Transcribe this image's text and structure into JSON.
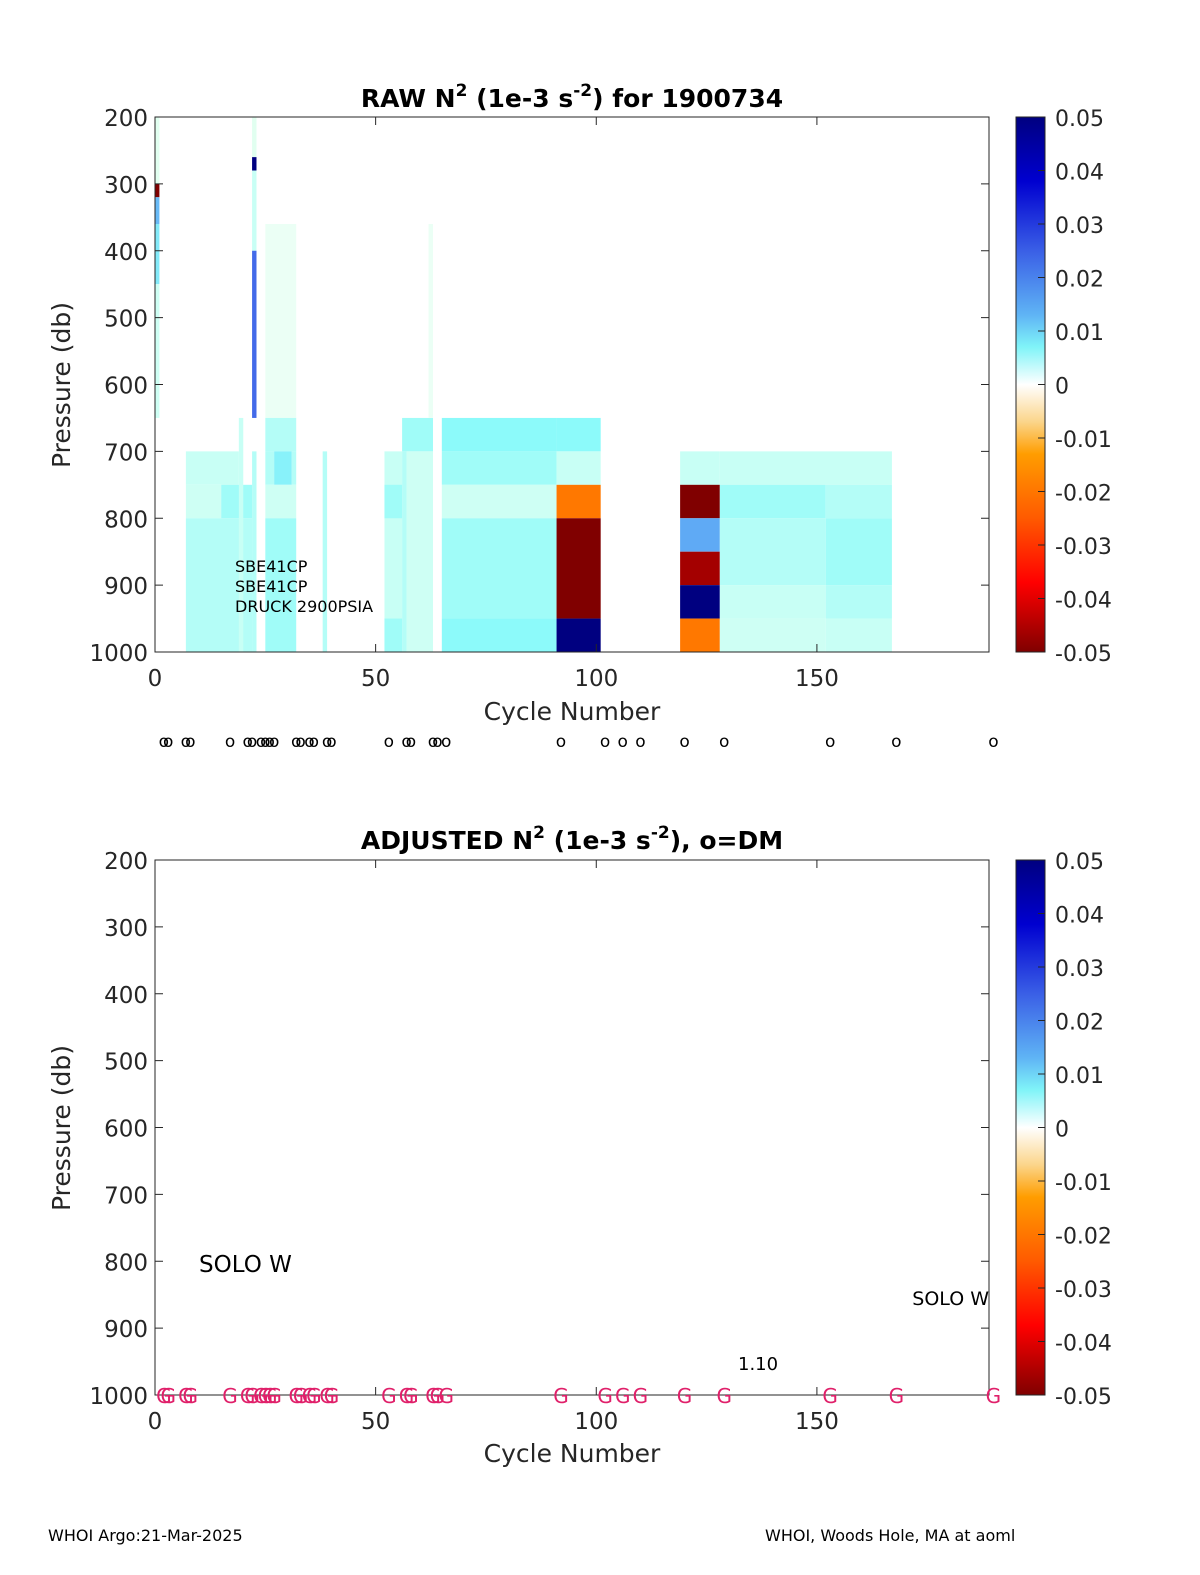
{
  "footer": {
    "left": "WHOI Argo:21-Mar-2025",
    "right": "WHOI, Woods Hole, MA at aoml"
  },
  "colorbar": {
    "colormap": "jet-like with white center (dark red → red → orange → white → cyan → blue → navy)",
    "range": [
      -0.05,
      0.05
    ],
    "tick_labels": [
      "0.05",
      "0.04",
      "0.03",
      "0.02",
      "0.01",
      "0",
      "-0.01",
      "-0.02",
      "-0.03",
      "-0.04",
      "-0.05"
    ]
  },
  "chart_data": [
    {
      "type": "heatmap",
      "title_main": "RAW N",
      "title_sup1": "2",
      "title_mid": " (1e-3 s",
      "title_sup2": "-2",
      "title_end": ") for 1900734",
      "xlabel": "Cycle Number",
      "ylabel": "Pressure (db)",
      "xlim": [
        0,
        189
      ],
      "ylim": [
        1000,
        200
      ],
      "y_reversed": true,
      "xticks": [
        0,
        50,
        100,
        150
      ],
      "xtick_labels": [
        "0",
        "50",
        "100",
        "150"
      ],
      "yticks": [
        200,
        300,
        400,
        500,
        600,
        700,
        800,
        900,
        1000
      ],
      "ytick_labels": [
        "200",
        "300",
        "400",
        "500",
        "600",
        "700",
        "800",
        "900",
        "1000"
      ],
      "annotations": [
        "SBE41CP",
        "SBE41CP",
        "DRUCK 2900PSIA"
      ],
      "cells": [
        {
          "x0": 0,
          "x1": 1,
          "p0": 200,
          "p1": 300,
          "v": 0.003
        },
        {
          "x0": 0,
          "x1": 1,
          "p0": 300,
          "p1": 320,
          "v": -0.05
        },
        {
          "x0": 0,
          "x1": 1,
          "p0": 320,
          "p1": 360,
          "v": 0.018
        },
        {
          "x0": 0,
          "x1": 1,
          "p0": 360,
          "p1": 450,
          "v": 0.012
        },
        {
          "x0": 0,
          "x1": 1,
          "p0": 450,
          "p1": 650,
          "v": 0.006
        },
        {
          "x0": 7,
          "x1": 19,
          "p0": 700,
          "p1": 750,
          "v": 0.007
        },
        {
          "x0": 7,
          "x1": 15,
          "p0": 750,
          "p1": 800,
          "v": 0.006
        },
        {
          "x0": 15,
          "x1": 22,
          "p0": 750,
          "p1": 800,
          "v": 0.009
        },
        {
          "x0": 7,
          "x1": 22,
          "p0": 800,
          "p1": 1000,
          "v": 0.008
        },
        {
          "x0": 19,
          "x1": 20,
          "p0": 650,
          "p1": 1000,
          "v": 0.007
        },
        {
          "x0": 22,
          "x1": 23,
          "p0": 200,
          "p1": 260,
          "v": 0.003
        },
        {
          "x0": 22,
          "x1": 23,
          "p0": 260,
          "p1": 280,
          "v": 0.05
        },
        {
          "x0": 22,
          "x1": 23,
          "p0": 280,
          "p1": 400,
          "v": 0.007
        },
        {
          "x0": 22,
          "x1": 23,
          "p0": 400,
          "p1": 650,
          "v": 0.028
        },
        {
          "x0": 22,
          "x1": 23,
          "p0": 700,
          "p1": 1000,
          "v": 0.008
        },
        {
          "x0": 25,
          "x1": 32,
          "p0": 360,
          "p1": 650,
          "v": 0.002
        },
        {
          "x0": 25,
          "x1": 32,
          "p0": 650,
          "p1": 700,
          "v": 0.008
        },
        {
          "x0": 25,
          "x1": 27,
          "p0": 700,
          "p1": 750,
          "v": 0.008
        },
        {
          "x0": 27,
          "x1": 31,
          "p0": 700,
          "p1": 750,
          "v": 0.011
        },
        {
          "x0": 31,
          "x1": 32,
          "p0": 700,
          "p1": 750,
          "v": 0.008
        },
        {
          "x0": 25,
          "x1": 32,
          "p0": 750,
          "p1": 800,
          "v": 0.006
        },
        {
          "x0": 25,
          "x1": 32,
          "p0": 800,
          "p1": 1000,
          "v": 0.009
        },
        {
          "x0": 38,
          "x1": 39,
          "p0": 700,
          "p1": 1000,
          "v": 0.008
        },
        {
          "x0": 52,
          "x1": 56,
          "p0": 700,
          "p1": 1000,
          "v": 0.007
        },
        {
          "x0": 52,
          "x1": 56,
          "p0": 750,
          "p1": 800,
          "v": 0.009
        },
        {
          "x0": 52,
          "x1": 56,
          "p0": 950,
          "p1": 1000,
          "v": 0.009
        },
        {
          "x0": 56,
          "x1": 63,
          "p0": 650,
          "p1": 700,
          "v": 0.009
        },
        {
          "x0": 56,
          "x1": 57,
          "p0": 700,
          "p1": 1000,
          "v": 0.008
        },
        {
          "x0": 57,
          "x1": 63,
          "p0": 700,
          "p1": 1000,
          "v": 0.006
        },
        {
          "x0": 62,
          "x1": 63,
          "p0": 360,
          "p1": 650,
          "v": 0.002
        },
        {
          "x0": 65,
          "x1": 91,
          "p0": 650,
          "p1": 700,
          "v": 0.01
        },
        {
          "x0": 65,
          "x1": 91,
          "p0": 700,
          "p1": 750,
          "v": 0.009
        },
        {
          "x0": 65,
          "x1": 91,
          "p0": 750,
          "p1": 800,
          "v": 0.006
        },
        {
          "x0": 65,
          "x1": 91,
          "p0": 800,
          "p1": 950,
          "v": 0.009
        },
        {
          "x0": 65,
          "x1": 91,
          "p0": 950,
          "p1": 1000,
          "v": 0.01
        },
        {
          "x0": 91,
          "x1": 101,
          "p0": 650,
          "p1": 700,
          "v": 0.01
        },
        {
          "x0": 91,
          "x1": 101,
          "p0": 700,
          "p1": 750,
          "v": 0.007
        },
        {
          "x0": 91,
          "x1": 101,
          "p0": 750,
          "p1": 800,
          "v": -0.02
        },
        {
          "x0": 91,
          "x1": 101,
          "p0": 800,
          "p1": 950,
          "v": -0.05
        },
        {
          "x0": 91,
          "x1": 101,
          "p0": 950,
          "p1": 1000,
          "v": 0.05
        },
        {
          "x0": 119,
          "x1": 128,
          "p0": 700,
          "p1": 750,
          "v": 0.007
        },
        {
          "x0": 119,
          "x1": 128,
          "p0": 750,
          "p1": 800,
          "v": -0.05
        },
        {
          "x0": 119,
          "x1": 128,
          "p0": 800,
          "p1": 850,
          "v": 0.02
        },
        {
          "x0": 119,
          "x1": 128,
          "p0": 850,
          "p1": 900,
          "v": -0.045
        },
        {
          "x0": 119,
          "x1": 128,
          "p0": 900,
          "p1": 950,
          "v": 0.05
        },
        {
          "x0": 119,
          "x1": 128,
          "p0": 950,
          "p1": 1000,
          "v": -0.02
        },
        {
          "x0": 128,
          "x1": 167,
          "p0": 700,
          "p1": 750,
          "v": 0.007
        },
        {
          "x0": 128,
          "x1": 152,
          "p0": 750,
          "p1": 800,
          "v": 0.009
        },
        {
          "x0": 152,
          "x1": 167,
          "p0": 750,
          "p1": 800,
          "v": 0.008
        },
        {
          "x0": 128,
          "x1": 152,
          "p0": 800,
          "p1": 900,
          "v": 0.008
        },
        {
          "x0": 152,
          "x1": 167,
          "p0": 800,
          "p1": 900,
          "v": 0.009
        },
        {
          "x0": 128,
          "x1": 152,
          "p0": 900,
          "p1": 950,
          "v": 0.007
        },
        {
          "x0": 152,
          "x1": 167,
          "p0": 900,
          "p1": 950,
          "v": 0.008
        },
        {
          "x0": 128,
          "x1": 152,
          "p0": 950,
          "p1": 1000,
          "v": 0.006
        },
        {
          "x0": 152,
          "x1": 167,
          "p0": 950,
          "p1": 1000,
          "v": 0.007
        }
      ],
      "dm_marker_label": "o",
      "dm_cycles": [
        2,
        3,
        7,
        8,
        17,
        21,
        22,
        24,
        25,
        26,
        27,
        32,
        33,
        35,
        36,
        39,
        40,
        53,
        57,
        58,
        63,
        64,
        66,
        92,
        102,
        106,
        110,
        120,
        129,
        153,
        168,
        190
      ]
    },
    {
      "type": "heatmap",
      "title_main": "ADJUSTED N",
      "title_sup1": "2",
      "title_mid": " (1e-3 s",
      "title_sup2": "-2",
      "title_end": "), o=DM",
      "xlabel": "Cycle Number",
      "ylabel": "Pressure (db)",
      "xlim": [
        0,
        189
      ],
      "ylim": [
        1000,
        200
      ],
      "y_reversed": true,
      "xticks": [
        0,
        50,
        100,
        150
      ],
      "xtick_labels": [
        "0",
        "50",
        "100",
        "150"
      ],
      "yticks": [
        200,
        300,
        400,
        500,
        600,
        700,
        800,
        900,
        1000
      ],
      "ytick_labels": [
        "200",
        "300",
        "400",
        "500",
        "600",
        "700",
        "800",
        "900",
        "1000"
      ],
      "cells": [],
      "annotations": [
        "SOLO W",
        "SOLO W",
        "1.10"
      ],
      "grade_marker_label": "G",
      "grade_cycles": [
        2,
        3,
        7,
        8,
        17,
        21,
        22,
        24,
        25,
        26,
        27,
        32,
        33,
        35,
        36,
        39,
        40,
        53,
        57,
        58,
        63,
        64,
        66,
        92,
        102,
        106,
        110,
        120,
        129,
        153,
        168,
        190
      ]
    }
  ]
}
